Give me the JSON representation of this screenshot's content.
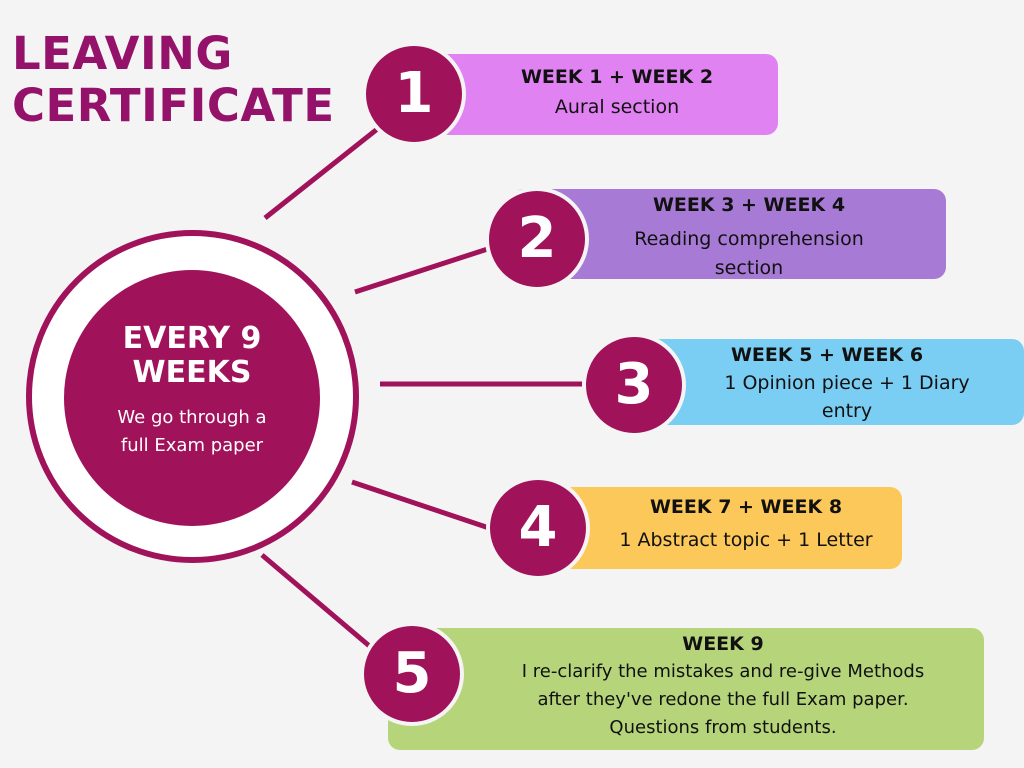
{
  "title": {
    "line1": "LEAVING",
    "line2": "CERTIFICATE"
  },
  "center": {
    "heading_line1": "EVERY 9",
    "heading_line2": "WEEKS",
    "sub_line1": "We go through a",
    "sub_line2": "full Exam paper"
  },
  "colors": {
    "brand": "#a0125a",
    "box1": "#e182f3",
    "box2": "#a77ad6",
    "box3": "#7acdf3",
    "box4": "#fdc85a",
    "box5": "#b6d57a"
  },
  "steps": [
    {
      "number": "1",
      "weeks": "WEEK 1 + WEEK 2",
      "text": [
        "Aural section"
      ]
    },
    {
      "number": "2",
      "weeks": "WEEK 3 + WEEK 4",
      "text": [
        "Reading comprehension",
        "section"
      ]
    },
    {
      "number": "3",
      "weeks": "WEEK 5 + WEEK 6",
      "text": [
        "1 Opinion piece + 1 Diary",
        "entry"
      ]
    },
    {
      "number": "4",
      "weeks": "WEEK 7 + WEEK 8",
      "text": [
        "1 Abstract topic + 1 Letter"
      ]
    },
    {
      "number": "5",
      "weeks": "WEEK 9",
      "text": [
        "I re-clarify the mistakes and re-give Methods",
        "after they've redone the full Exam paper.",
        "Questions from students."
      ]
    }
  ]
}
